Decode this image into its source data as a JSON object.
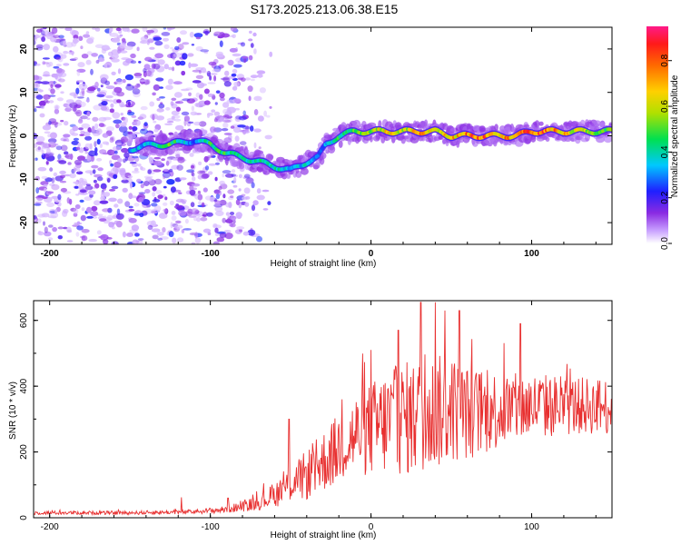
{
  "title": "S173.2025.213.06.38.E15",
  "chart_data": [
    {
      "type": "heatmap",
      "xlabel": "Height of straight line (km)",
      "ylabel": "Frequency (Hz)",
      "xlim": [
        -210,
        150
      ],
      "ylim": [
        -25,
        25
      ],
      "xticks": [
        -200,
        -100,
        0,
        100
      ],
      "yticks": [
        20,
        10,
        0,
        -10,
        -20
      ],
      "colorbar": {
        "label": "Normalized spectral amplitude",
        "range": [
          0,
          0.95
        ],
        "ticks": [
          "0.0",
          "0.2",
          "0.4",
          "0.6",
          "0.8"
        ],
        "colormap": "rainbow (white-violet-blue-cyan-green-yellow-orange-red-magenta)"
      },
      "ridge": {
        "x": [
          -150,
          -135,
          -125,
          -110,
          -100,
          -90,
          -80,
          -70,
          -60,
          -50,
          -40,
          -33,
          -28,
          -20,
          -10,
          0,
          10,
          20,
          30,
          40,
          50,
          60,
          70,
          80,
          90,
          100,
          110,
          120,
          130,
          140,
          150
        ],
        "frequency": [
          -3,
          -2,
          -2,
          -1,
          -2,
          -4,
          -5,
          -6,
          -7,
          -8,
          -6,
          -5,
          -2,
          0,
          1,
          1,
          1,
          1,
          1,
          1,
          0,
          0,
          0,
          0,
          0,
          1,
          1,
          1,
          1,
          1,
          1
        ],
        "amplitude": [
          0.35,
          0.4,
          0.55,
          0.3,
          0.5,
          0.5,
          0.45,
          0.45,
          0.45,
          0.4,
          0.4,
          0.3,
          0.35,
          0.5,
          0.55,
          0.6,
          0.75,
          0.6,
          0.8,
          0.7,
          0.75,
          0.85,
          0.9,
          0.8,
          0.85,
          0.9,
          0.85,
          0.75,
          0.65,
          0.6,
          0.55
        ]
      }
    },
    {
      "type": "line",
      "xlabel": "Height of straight line (km)",
      "ylabel": "SNR (10 * v/v)",
      "xlim": [
        -210,
        150
      ],
      "ylim": [
        0,
        660
      ],
      "xticks": [
        -200,
        -100,
        0,
        100
      ],
      "yticks": [
        0,
        200,
        400,
        600
      ],
      "color": "#e83030",
      "envelope": {
        "x": [
          -210,
          -150,
          -110,
          -90,
          -70,
          -60,
          -50,
          -40,
          -30,
          -20,
          -10,
          0,
          10,
          20,
          30,
          40,
          50,
          60,
          70,
          80,
          90,
          100,
          110,
          120,
          130,
          140,
          150
        ],
        "baseline": [
          15,
          15,
          18,
          25,
          45,
          70,
          100,
          130,
          170,
          210,
          250,
          270,
          290,
          300,
          310,
          320,
          330,
          320,
          320,
          330,
          330,
          340,
          340,
          340,
          340,
          340,
          340
        ],
        "spread": [
          10,
          10,
          12,
          20,
          40,
          70,
          100,
          140,
          170,
          200,
          230,
          260,
          300,
          320,
          320,
          320,
          300,
          260,
          240,
          220,
          200,
          190,
          180,
          170,
          160,
          160,
          160
        ]
      },
      "peaks": [
        {
          "x": -118,
          "y": 62
        },
        {
          "x": -89,
          "y": 60
        },
        {
          "x": -51,
          "y": 300
        },
        {
          "x": -18,
          "y": 360
        },
        {
          "x": 0,
          "y": 510
        },
        {
          "x": 17,
          "y": 570
        },
        {
          "x": 31,
          "y": 655
        },
        {
          "x": 40,
          "y": 655
        },
        {
          "x": 46,
          "y": 630
        },
        {
          "x": 55,
          "y": 630
        },
        {
          "x": 93,
          "y": 590
        },
        {
          "x": 150,
          "y": 450
        }
      ]
    }
  ]
}
